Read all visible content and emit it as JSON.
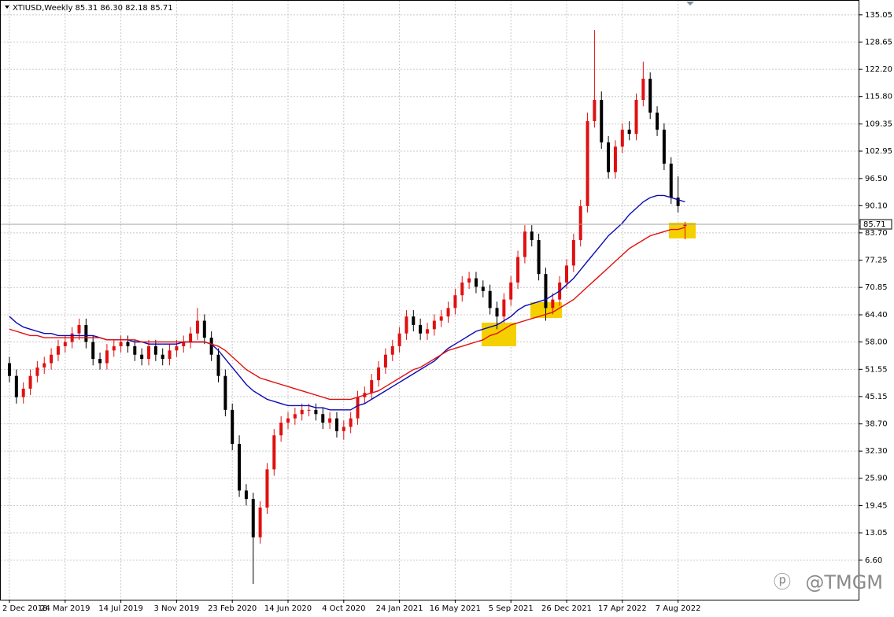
{
  "chart_data": {
    "type": "candlestick",
    "title": "XTIUSD,Weekly  85.31 86.30 82.18 85.71",
    "watermark": "@TMGM",
    "up_color": "#e01010",
    "down_color": "#000000",
    "grid": true,
    "ylim": [
      -2.7,
      137.8
    ],
    "yticks": [
      135.05,
      128.65,
      {
        "value": 122.2,
        "label": "122.20"
      },
      {
        "value": 115.8,
        "label": "115.80"
      },
      109.35,
      102.95,
      {
        "value": 96.5,
        "label": "96.50"
      },
      {
        "value": 90.1,
        "label": "90.10"
      },
      {
        "value": 83.7,
        "label": "83.70"
      },
      77.25,
      70.85,
      {
        "value": 64.4,
        "label": "64.40"
      },
      {
        "value": 58,
        "label": "58.00"
      },
      51.55,
      45.15,
      {
        "value": 38.7,
        "label": "38.70"
      },
      {
        "value": 32.3,
        "label": "32.30"
      },
      {
        "value": 25.9,
        "label": "25.90"
      },
      19.45,
      13.05,
      {
        "value": 6.6,
        "label": "6.60"
      }
    ],
    "last_price": 85.71,
    "categories": [
      "2 Dec 2018",
      null,
      null,
      null,
      null,
      null,
      null,
      null,
      "24 Mar 2019",
      null,
      null,
      null,
      null,
      null,
      null,
      null,
      "14 Jul 2019",
      null,
      null,
      null,
      null,
      null,
      null,
      null,
      "3 Nov 2019",
      null,
      null,
      null,
      null,
      null,
      null,
      null,
      "23 Feb 2020",
      null,
      null,
      null,
      null,
      null,
      null,
      null,
      "14 Jun 2020",
      null,
      null,
      null,
      null,
      null,
      null,
      null,
      "4 Oct 2020",
      null,
      null,
      null,
      null,
      null,
      null,
      null,
      "24 Jan 2021",
      null,
      null,
      null,
      null,
      null,
      null,
      null,
      "16 May 2021",
      null,
      null,
      null,
      null,
      null,
      null,
      null,
      "5 Sep 2021",
      null,
      null,
      null,
      null,
      null,
      null,
      null,
      "26 Dec 2021",
      null,
      null,
      null,
      null,
      null,
      null,
      null,
      "17 Apr 2022",
      null,
      null,
      null,
      null,
      null,
      null,
      null,
      "7 Aug 2022",
      null
    ],
    "open": [
      53,
      50,
      45,
      47,
      50,
      52,
      53,
      55,
      57,
      58,
      60,
      62,
      58,
      54,
      53,
      56,
      57,
      58,
      57,
      55,
      54,
      57,
      55,
      54,
      56,
      57,
      58,
      60,
      63,
      59,
      55,
      50,
      42,
      34,
      23,
      21,
      12,
      19,
      28,
      36,
      39,
      40,
      41,
      42,
      42,
      41,
      39,
      40,
      37,
      38,
      40,
      45,
      46,
      49,
      52,
      55,
      57,
      60,
      64,
      62,
      60,
      61,
      63,
      64,
      66,
      69,
      72,
      73,
      71,
      70,
      66,
      64,
      68,
      72,
      78,
      84,
      82,
      74,
      66,
      68,
      72,
      76,
      82,
      90,
      110,
      115,
      105,
      98,
      104,
      108,
      107,
      115,
      120,
      112,
      108,
      100,
      92,
      85.31
    ],
    "high": [
      54.5,
      51.5,
      48.5,
      51.5,
      53.5,
      54.5,
      56.5,
      58.5,
      59.5,
      61.5,
      63.5,
      63.5,
      59.5,
      55.5,
      57.5,
      58.5,
      59.5,
      59.5,
      58.5,
      56.5,
      58.5,
      58.5,
      56.5,
      57.5,
      58.5,
      59.5,
      61.5,
      66,
      64.5,
      60.5,
      56.5,
      51.5,
      43.5,
      36,
      24.5,
      22.5,
      20.5,
      29.5,
      37.5,
      40.5,
      41.5,
      42.5,
      43.5,
      43.5,
      43.5,
      42.5,
      41.5,
      41.5,
      39.5,
      41.5,
      46.5,
      47.5,
      50.5,
      53.5,
      56.5,
      58.5,
      61.5,
      65.5,
      65.5,
      63.5,
      62.5,
      64.5,
      65.5,
      67.5,
      70.5,
      73.5,
      74.5,
      74.5,
      72.5,
      71.5,
      67.5,
      69.5,
      73.5,
      79.5,
      85.5,
      85.5,
      83.5,
      75.5,
      69.5,
      73.5,
      77.5,
      83.5,
      91.5,
      112,
      131.5,
      117,
      106.5,
      105.5,
      109.5,
      110,
      116.5,
      124,
      121.5,
      113.5,
      109.5,
      101.5,
      97,
      86.3
    ],
    "low": [
      48.5,
      43.5,
      43.5,
      45.5,
      48.5,
      50.5,
      51.5,
      53.5,
      55.5,
      56.5,
      58.5,
      56.5,
      52.5,
      51.5,
      51.5,
      54.5,
      55.5,
      55.5,
      53.5,
      52.5,
      52.5,
      53.5,
      52.5,
      52.5,
      54.5,
      55.5,
      56.5,
      58.5,
      57.5,
      53.5,
      48.5,
      40.5,
      32.5,
      21.5,
      19.5,
      1,
      10.5,
      17.5,
      26.5,
      34.5,
      37.5,
      38.5,
      39.5,
      40.5,
      39.5,
      37.5,
      37.5,
      35.5,
      35,
      36.5,
      38.5,
      43.5,
      44.5,
      47.5,
      50.5,
      53.5,
      55.5,
      58.5,
      60.5,
      58.5,
      58.5,
      59.5,
      61.5,
      62.5,
      64.5,
      67.5,
      70.5,
      69.5,
      68.5,
      64.5,
      61,
      62.5,
      66.5,
      70.5,
      76.5,
      80.5,
      72.5,
      63,
      64.5,
      66.5,
      70.5,
      74.5,
      80.5,
      88.5,
      108.5,
      103.5,
      96.5,
      96.5,
      102.5,
      105.5,
      105.5,
      113.5,
      110.5,
      106.5,
      98.5,
      90.5,
      88.5,
      82.18
    ],
    "close": [
      50,
      45,
      47,
      50,
      52,
      53,
      55,
      57,
      58,
      60,
      62,
      58,
      54,
      53,
      56,
      57,
      58,
      57,
      55,
      54,
      57,
      55,
      54,
      56,
      57,
      58,
      60,
      63,
      59,
      55,
      50,
      42,
      34,
      23,
      21,
      12,
      19,
      28,
      36,
      39,
      40,
      41,
      42,
      42,
      41,
      39,
      40,
      37,
      38,
      40,
      45,
      46,
      49,
      52,
      55,
      57,
      60,
      64,
      62,
      60,
      61,
      63,
      64,
      66,
      69,
      72,
      73,
      71,
      70,
      66,
      64,
      68,
      72,
      78,
      84,
      82,
      74,
      66,
      68,
      72,
      76,
      82,
      90,
      110,
      115,
      105,
      98,
      104,
      108,
      107,
      115,
      120,
      112,
      108,
      100,
      92,
      90,
      85.71
    ],
    "lines": [
      {
        "color": "#0a0ab4",
        "values": [
          64,
          62.5,
          61.5,
          61,
          60.5,
          60,
          60,
          59.5,
          59.5,
          59.5,
          59.5,
          59.5,
          59.5,
          59,
          58.5,
          58.5,
          58.5,
          58.5,
          58,
          58,
          57.5,
          57.5,
          57.5,
          57.5,
          57.5,
          58,
          58,
          58,
          58,
          57.5,
          56,
          54,
          52,
          50,
          48,
          46.5,
          45.5,
          44.5,
          44,
          43.5,
          43,
          43,
          43,
          43,
          42.5,
          42.5,
          42,
          42,
          42,
          42,
          43,
          43.5,
          44.5,
          45.5,
          46.5,
          47.5,
          48.5,
          49.5,
          50.5,
          51.5,
          52.5,
          53.5,
          55,
          56.5,
          57.5,
          58.5,
          59.5,
          60.5,
          61,
          61.5,
          62,
          63,
          64,
          65.5,
          66.5,
          67,
          67.5,
          68,
          69,
          70,
          71.5,
          73,
          75,
          77,
          79,
          81,
          83,
          84.5,
          86,
          88,
          89.5,
          91,
          92,
          92.5,
          92.5,
          92,
          91.5,
          91
        ]
      },
      {
        "color": "#e01010",
        "values": [
          61,
          60.5,
          60,
          59.5,
          59.5,
          59,
          59,
          59,
          59,
          59,
          59,
          59,
          59,
          59,
          58.5,
          58.5,
          58.5,
          58.5,
          58.5,
          58,
          58,
          58,
          58,
          58,
          58,
          58,
          58,
          58,
          58,
          57.5,
          57,
          56,
          54.5,
          53,
          51.5,
          50.5,
          49.5,
          49,
          48.5,
          48,
          47.5,
          47,
          46.5,
          46,
          45.5,
          45,
          44.5,
          44.5,
          44.5,
          44.5,
          45,
          45.5,
          46,
          46.5,
          47.5,
          48.5,
          49.5,
          50.5,
          51.5,
          52,
          53,
          54,
          55,
          56,
          56.5,
          57,
          57.5,
          58,
          58.5,
          59.5,
          60,
          61,
          62,
          62.5,
          63,
          63.5,
          64,
          64.5,
          65,
          66,
          67,
          68,
          69.5,
          71,
          72.5,
          74,
          75.5,
          77,
          78.5,
          80,
          81,
          82,
          83,
          83.5,
          84,
          84.5,
          84.5,
          85
        ]
      }
    ]
  }
}
